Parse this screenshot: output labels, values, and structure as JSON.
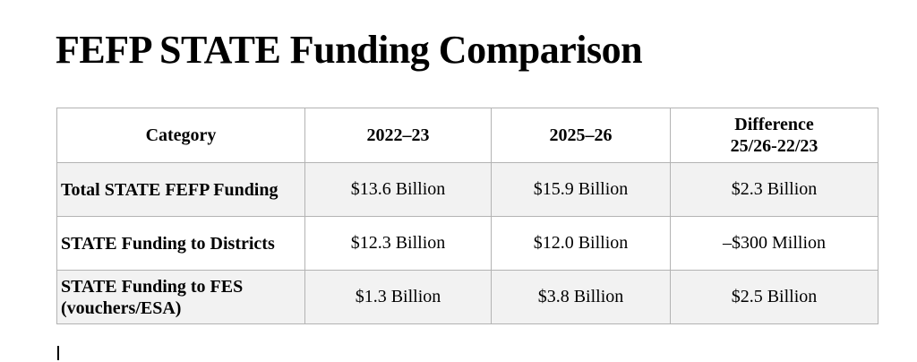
{
  "document": {
    "title": "FEFP STATE Funding Comparison"
  },
  "table": {
    "columns": [
      {
        "label": "Category"
      },
      {
        "label": "2022–23"
      },
      {
        "label": "2025–26"
      },
      {
        "label": "Difference",
        "label_line2": "25/26-22/23"
      }
    ],
    "rows": [
      {
        "category": "Total STATE FEFP Funding",
        "y2022_23": "$13.6 Billion",
        "y2025_26": "$15.9 Billion",
        "difference": "$2.3 Billion"
      },
      {
        "category": "STATE Funding to Districts",
        "y2022_23": "$12.3 Billion",
        "y2025_26": "$12.0 Billion",
        "difference": "–$300 Million"
      },
      {
        "category": "STATE Funding to FES (vouchers/ESA)",
        "y2022_23": "$1.3 Billion",
        "y2025_26": "$3.8 Billion",
        "difference": "$2.5 Billion"
      }
    ]
  },
  "colors": {
    "row-shade": "#f2f2f2",
    "table-border": "#b3b3b3",
    "text": "#000000",
    "page-bg": "#ffffff"
  }
}
